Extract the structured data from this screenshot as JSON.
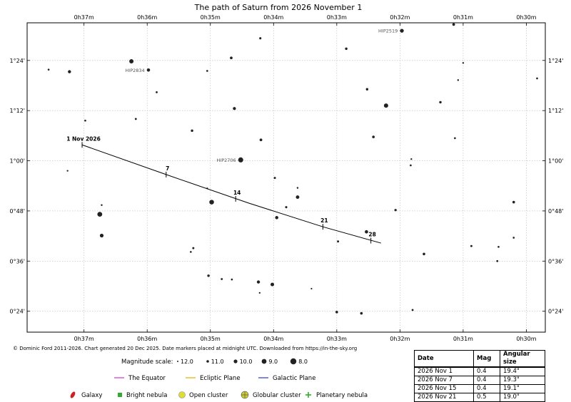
{
  "chart_data": {
    "type": "scatter",
    "title": "The path of Saturn from 2026 November 1",
    "x_axis": {
      "label": "",
      "tick_labels": [
        "0h37m",
        "0h36m",
        "0h35m",
        "0h34m",
        "0h33m",
        "0h32m",
        "0h31m",
        "0h30m"
      ],
      "tick_values_min": [
        37,
        36,
        35,
        34,
        33,
        32,
        31,
        30
      ],
      "range_min": [
        37.9,
        29.7
      ],
      "reversed": true
    },
    "y_axis": {
      "label": "",
      "tick_labels": [
        "0°24'",
        "0°36'",
        "0°48'",
        "1°00'",
        "1°12'",
        "1°24'"
      ],
      "tick_values_arcmin": [
        24,
        36,
        48,
        60,
        72,
        84
      ],
      "range_arcmin": [
        19,
        93
      ]
    },
    "grid": true,
    "path": {
      "name": "Saturn",
      "points": [
        {
          "ra_min": 37.03,
          "dec_arcmin": 63.8
        },
        {
          "ra_min": 35.7,
          "dec_arcmin": 56.7
        },
        {
          "ra_min": 34.4,
          "dec_arcmin": 49.9
        },
        {
          "ra_min": 33.22,
          "dec_arcmin": 44.2
        },
        {
          "ra_min": 32.3,
          "dec_arcmin": 40.3
        }
      ]
    },
    "date_markers": [
      {
        "label": "1 Nov 2026",
        "ra_min": 37.03,
        "dec_arcmin": 63.8
      },
      {
        "label": "7",
        "ra_min": 35.7,
        "dec_arcmin": 56.7
      },
      {
        "label": "14",
        "ra_min": 34.6,
        "dec_arcmin": 50.9
      },
      {
        "label": "21",
        "ra_min": 33.22,
        "dec_arcmin": 44.2
      },
      {
        "label": "28",
        "ra_min": 32.46,
        "dec_arcmin": 40.9
      }
    ],
    "stars": [
      {
        "ra_min": 37.56,
        "dec_arcmin": 81.8,
        "mag": 11.6
      },
      {
        "ra_min": 37.23,
        "dec_arcmin": 81.3,
        "mag": 10.5
      },
      {
        "ra_min": 36.98,
        "dec_arcmin": 69.6,
        "mag": 11.6
      },
      {
        "ra_min": 37.26,
        "dec_arcmin": 57.6,
        "mag": 11.8
      },
      {
        "ra_min": 36.75,
        "dec_arcmin": 47.2,
        "mag": 9.0
      },
      {
        "ra_min": 36.72,
        "dec_arcmin": 49.4,
        "mag": 11.7
      },
      {
        "ra_min": 36.72,
        "dec_arcmin": 42.1,
        "mag": 10.0
      },
      {
        "ra_min": 36.25,
        "dec_arcmin": 83.8,
        "mag": 9.5
      },
      {
        "ra_min": 35.98,
        "dec_arcmin": 81.7,
        "mag": 10.4,
        "label": "HIP2834"
      },
      {
        "ra_min": 36.18,
        "dec_arcmin": 70.0,
        "mag": 11.5
      },
      {
        "ra_min": 35.85,
        "dec_arcmin": 76.4,
        "mag": 11.5
      },
      {
        "ra_min": 35.29,
        "dec_arcmin": 67.2,
        "mag": 11.1
      },
      {
        "ra_min": 35.31,
        "dec_arcmin": 38.2,
        "mag": 11.6
      },
      {
        "ra_min": 35.27,
        "dec_arcmin": 39.1,
        "mag": 11.4
      },
      {
        "ra_min": 35.05,
        "dec_arcmin": 81.5,
        "mag": 11.6
      },
      {
        "ra_min": 34.67,
        "dec_arcmin": 84.6,
        "mag": 10.9
      },
      {
        "ra_min": 34.62,
        "dec_arcmin": 72.5,
        "mag": 10.6
      },
      {
        "ra_min": 35.05,
        "dec_arcmin": 53.4,
        "mag": 11.8
      },
      {
        "ra_min": 34.98,
        "dec_arcmin": 50.1,
        "mag": 9.2
      },
      {
        "ra_min": 34.21,
        "dec_arcmin": 89.3,
        "mag": 11.3
      },
      {
        "ra_min": 34.2,
        "dec_arcmin": 65.0,
        "mag": 10.9
      },
      {
        "ra_min": 34.52,
        "dec_arcmin": 60.2,
        "mag": 8.8,
        "label": "HIP2706"
      },
      {
        "ra_min": 33.98,
        "dec_arcmin": 55.9,
        "mag": 11.4
      },
      {
        "ra_min": 35.03,
        "dec_arcmin": 32.5,
        "mag": 11.1
      },
      {
        "ra_min": 34.82,
        "dec_arcmin": 31.7,
        "mag": 11.5
      },
      {
        "ra_min": 34.66,
        "dec_arcmin": 31.6,
        "mag": 11.6
      },
      {
        "ra_min": 34.24,
        "dec_arcmin": 31.0,
        "mag": 10.5
      },
      {
        "ra_min": 34.22,
        "dec_arcmin": 28.4,
        "mag": 11.8
      },
      {
        "ra_min": 34.02,
        "dec_arcmin": 30.4,
        "mag": 10.1
      },
      {
        "ra_min": 33.8,
        "dec_arcmin": 48.9,
        "mag": 11.3
      },
      {
        "ra_min": 33.62,
        "dec_arcmin": 51.3,
        "mag": 10.2
      },
      {
        "ra_min": 33.95,
        "dec_arcmin": 46.4,
        "mag": 10.4
      },
      {
        "ra_min": 33.62,
        "dec_arcmin": 53.5,
        "mag": 11.7
      },
      {
        "ra_min": 33.4,
        "dec_arcmin": 29.4,
        "mag": 11.9
      },
      {
        "ra_min": 33.0,
        "dec_arcmin": 23.8,
        "mag": 11.0
      },
      {
        "ra_min": 32.98,
        "dec_arcmin": 40.7,
        "mag": 11.4
      },
      {
        "ra_min": 32.85,
        "dec_arcmin": 86.8,
        "mag": 11.1
      },
      {
        "ra_min": 32.61,
        "dec_arcmin": 23.5,
        "mag": 11.0
      },
      {
        "ra_min": 32.52,
        "dec_arcmin": 77.1,
        "mag": 11.1
      },
      {
        "ra_min": 32.53,
        "dec_arcmin": 43.0,
        "mag": 10.3
      },
      {
        "ra_min": 32.42,
        "dec_arcmin": 65.7,
        "mag": 11.0
      },
      {
        "ra_min": 32.22,
        "dec_arcmin": 73.2,
        "mag": 9.5
      },
      {
        "ra_min": 32.07,
        "dec_arcmin": 48.2,
        "mag": 11.2
      },
      {
        "ra_min": 31.97,
        "dec_arcmin": 91.1,
        "mag": 9.9,
        "label": "HIP2519"
      },
      {
        "ra_min": 31.82,
        "dec_arcmin": 60.4,
        "mag": 11.8
      },
      {
        "ra_min": 31.83,
        "dec_arcmin": 58.9,
        "mag": 11.6
      },
      {
        "ra_min": 31.8,
        "dec_arcmin": 24.3,
        "mag": 11.5
      },
      {
        "ra_min": 31.62,
        "dec_arcmin": 37.7,
        "mag": 11.0
      },
      {
        "ra_min": 31.36,
        "dec_arcmin": 74.0,
        "mag": 11.1
      },
      {
        "ra_min": 31.15,
        "dec_arcmin": 92.6,
        "mag": 10.9
      },
      {
        "ra_min": 31.13,
        "dec_arcmin": 65.4,
        "mag": 11.6
      },
      {
        "ra_min": 31.08,
        "dec_arcmin": 79.3,
        "mag": 11.7
      },
      {
        "ra_min": 31.0,
        "dec_arcmin": 83.4,
        "mag": 11.7
      },
      {
        "ra_min": 30.87,
        "dec_arcmin": 39.6,
        "mag": 11.4
      },
      {
        "ra_min": 30.46,
        "dec_arcmin": 36.0,
        "mag": 11.5
      },
      {
        "ra_min": 30.44,
        "dec_arcmin": 39.4,
        "mag": 11.6
      },
      {
        "ra_min": 30.2,
        "dec_arcmin": 50.1,
        "mag": 11.0
      },
      {
        "ra_min": 30.2,
        "dec_arcmin": 41.6,
        "mag": 11.6
      },
      {
        "ra_min": 29.83,
        "dec_arcmin": 79.7,
        "mag": 11.6
      }
    ]
  },
  "credit": "© Dominic Ford 2011-2026. Chart generated 20 Dec 2025. Date markers placed at midnight UTC. Downloaded from https://in-the-sky.org",
  "legend": {
    "magnitude_title": "Magnitude scale:",
    "magnitudes": [
      "12.0",
      "11.0",
      "10.0",
      "9.0",
      "8.0"
    ],
    "lines": [
      {
        "label": "The Equator",
        "color": "#cc33cc"
      },
      {
        "label": "Ecliptic Plane",
        "color": "#e0b000"
      },
      {
        "label": "Galactic Plane",
        "color": "#3333cc"
      }
    ],
    "objects": [
      {
        "label": "Galaxy",
        "icon": "galaxy-ellipse",
        "color": "#cc2222"
      },
      {
        "label": "Bright nebula",
        "icon": "nebula-square",
        "color": "#33aa33"
      },
      {
        "label": "Open cluster",
        "icon": "open-cluster-circle",
        "color": "#dddd33"
      },
      {
        "label": "Globular cluster",
        "icon": "globular-cluster-crosshair",
        "color": "#cccc33"
      },
      {
        "label": "Planetary nebula",
        "icon": "planetary-nebula-cross",
        "color": "#33aa33"
      }
    ]
  },
  "ephemeris": {
    "headers": [
      "Date",
      "Mag",
      "Angular size"
    ],
    "rows": [
      [
        "2026 Nov 1",
        "0.4",
        "19.4\""
      ],
      [
        "2026 Nov 7",
        "0.4",
        "19.3\""
      ],
      [
        "2026 Nov 15",
        "0.4",
        "19.1\""
      ],
      [
        "2026 Nov 21",
        "0.5",
        "19.0\""
      ]
    ]
  }
}
